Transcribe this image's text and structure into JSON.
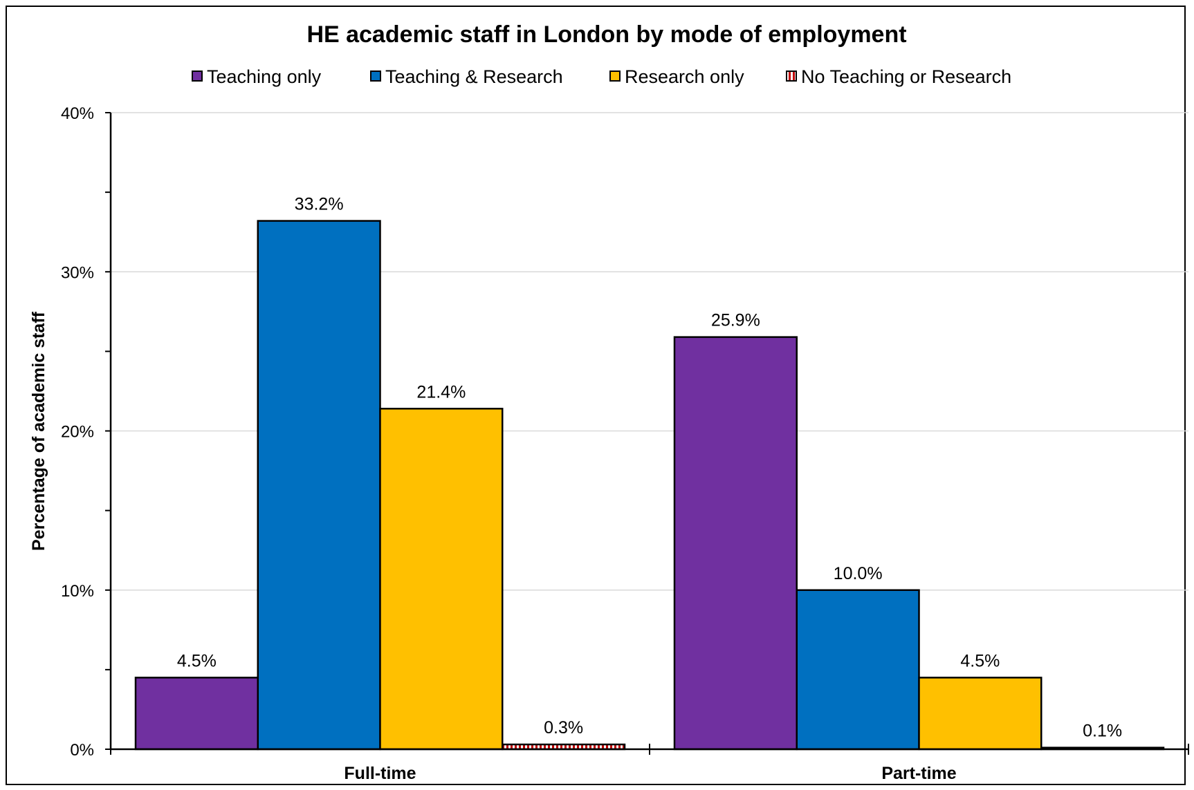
{
  "chart_data": {
    "type": "bar",
    "title": "HE academic staff in London by mode of employment",
    "xlabel": "",
    "ylabel": "Percentage of academic staff",
    "categories": [
      "Full-time",
      "Part-time"
    ],
    "series": [
      {
        "name": "Teaching only",
        "color": "#7030a0",
        "values": [
          4.5,
          25.9
        ],
        "labels": [
          "4.5%",
          "25.9%"
        ]
      },
      {
        "name": "Teaching & Research",
        "color": "#0070c0",
        "values": [
          33.2,
          10.0
        ],
        "labels": [
          "33.2%",
          "10.0%"
        ]
      },
      {
        "name": "Research only",
        "color": "#ffc000",
        "values": [
          21.4,
          4.5
        ],
        "labels": [
          "21.4%",
          "4.5%"
        ]
      },
      {
        "name": "No Teaching or Research",
        "color": "#c00000",
        "pattern": "red-white-stripes",
        "values": [
          0.3,
          0.1
        ],
        "labels": [
          "0.3%",
          "0.1%"
        ]
      }
    ],
    "ylim": [
      0,
      40
    ],
    "yticks": [
      0,
      10,
      20,
      30,
      40
    ],
    "ytick_labels": [
      "0%",
      "10%",
      "20%",
      "30%",
      "40%"
    ],
    "grid": true,
    "legend_position": "top"
  }
}
